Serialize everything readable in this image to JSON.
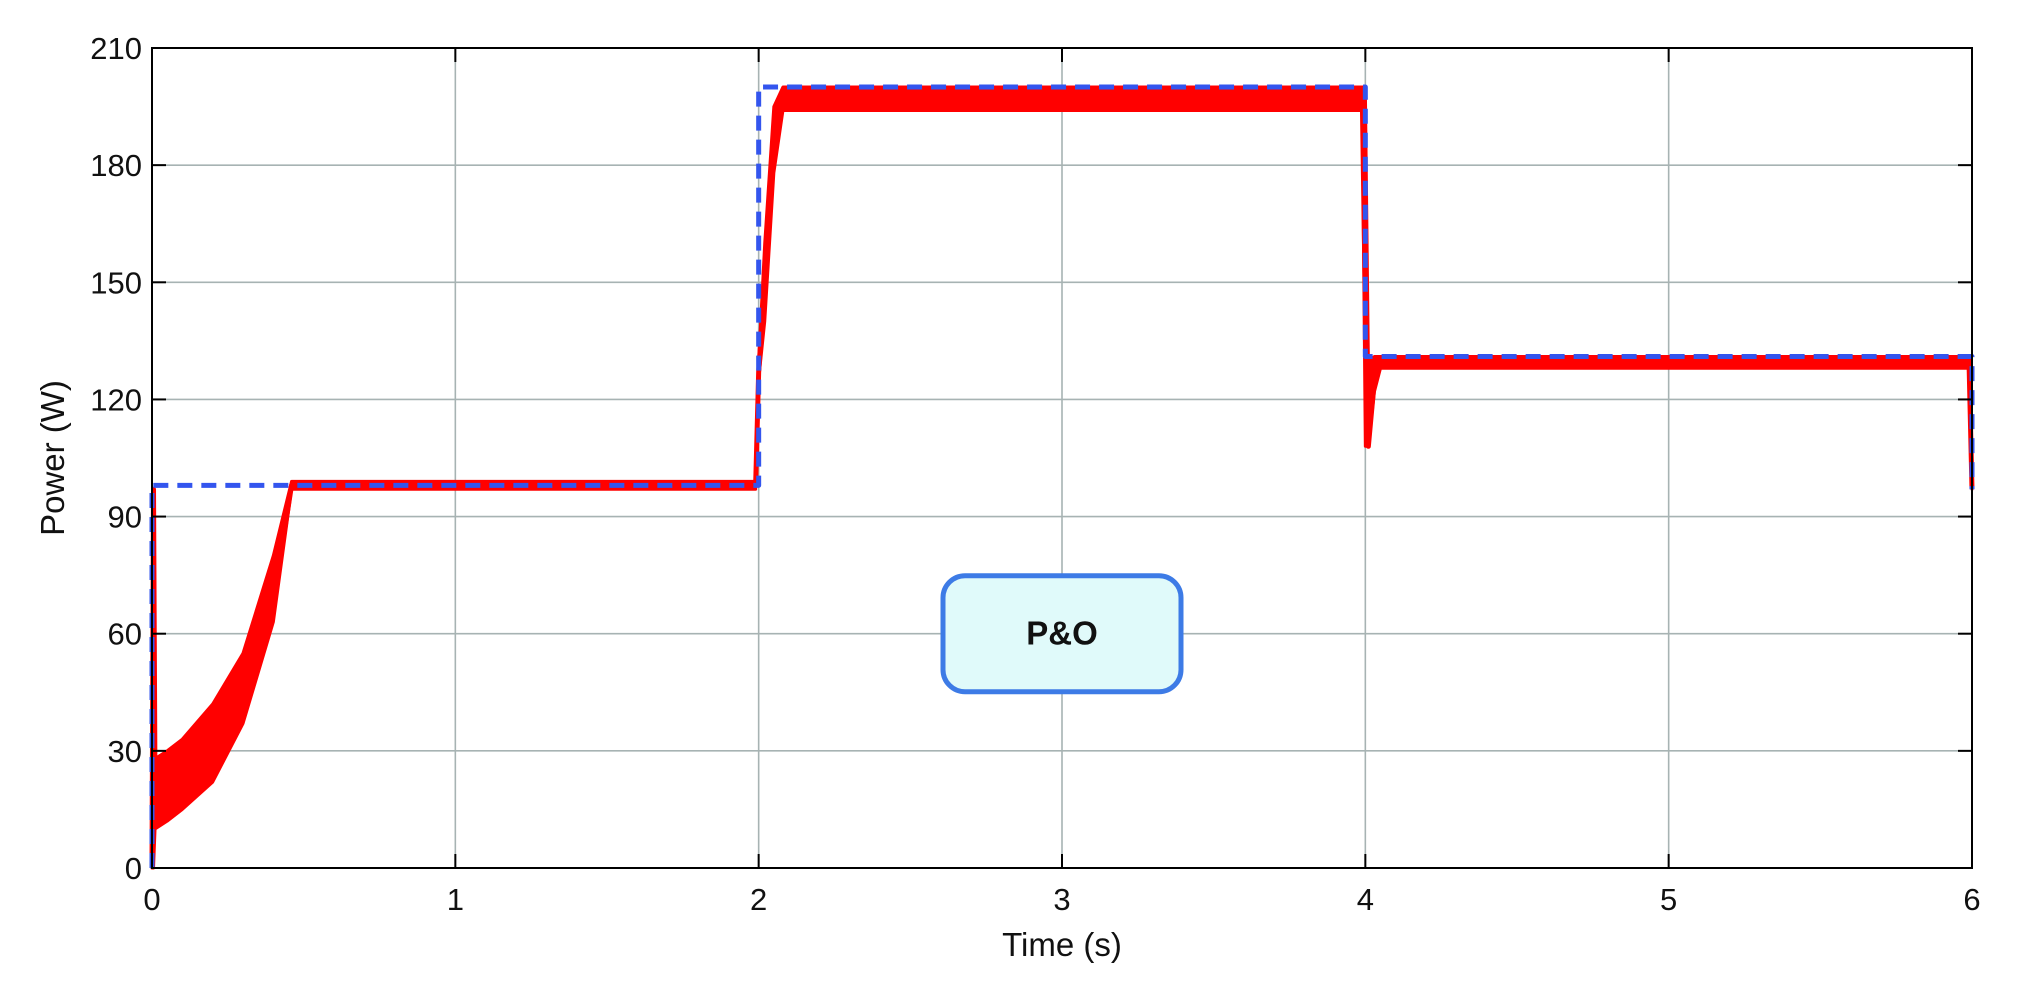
{
  "chart_data": {
    "type": "line",
    "xlabel": "Time (s)",
    "ylabel": "Power (W)",
    "xlim": [
      0,
      6
    ],
    "ylim": [
      0,
      210
    ],
    "x_ticks": [
      "0",
      "1",
      "2",
      "3",
      "4",
      "5",
      "6"
    ],
    "y_ticks": [
      "0",
      "30",
      "60",
      "90",
      "120",
      "150",
      "180",
      "210"
    ],
    "grid": true,
    "annotation": {
      "text": "P&O",
      "x": 3,
      "y": 60
    },
    "series": [
      {
        "color": "#ff0000",
        "style": "solid-oscillating",
        "x": [
          0,
          0.005,
          0.01,
          0.05,
          0.1,
          0.2,
          0.3,
          0.4,
          0.46,
          0.5,
          1.0,
          1.5,
          1.99,
          2.0,
          2.02,
          2.05,
          2.08,
          2.5,
          3.0,
          3.5,
          3.99,
          4.0,
          4.01,
          4.03,
          4.05,
          4.5,
          5.0,
          5.5,
          5.99,
          6.0
        ],
        "y": [
          0,
          97,
          20,
          22,
          25,
          31,
          43,
          68,
          98,
          98,
          98,
          98,
          98,
          127,
          150,
          185,
          197,
          197,
          197,
          197,
          197,
          145,
          108,
          125,
          130,
          130,
          130,
          130,
          130,
          97
        ],
        "band_low": [
          0,
          0,
          10,
          12,
          15,
          22,
          37,
          63,
          97,
          97,
          97,
          97,
          97,
          125,
          140,
          178,
          194,
          194,
          194,
          194,
          194,
          108,
          108,
          122,
          128,
          128,
          128,
          128,
          128,
          97
        ],
        "band_high": [
          0,
          97,
          28,
          30,
          33,
          42,
          55,
          80,
          99,
          99,
          99,
          99,
          99,
          130,
          160,
          195,
          200,
          200,
          200,
          200,
          200,
          200,
          130,
          131,
          131,
          131,
          131,
          131,
          131,
          97
        ]
      },
      {
        "color": "#3355ee",
        "style": "dashed",
        "x": [
          0,
          0,
          2,
          2,
          4,
          4,
          6,
          6
        ],
        "y": [
          0,
          98,
          98,
          200,
          200,
          131,
          131,
          97
        ]
      }
    ]
  }
}
